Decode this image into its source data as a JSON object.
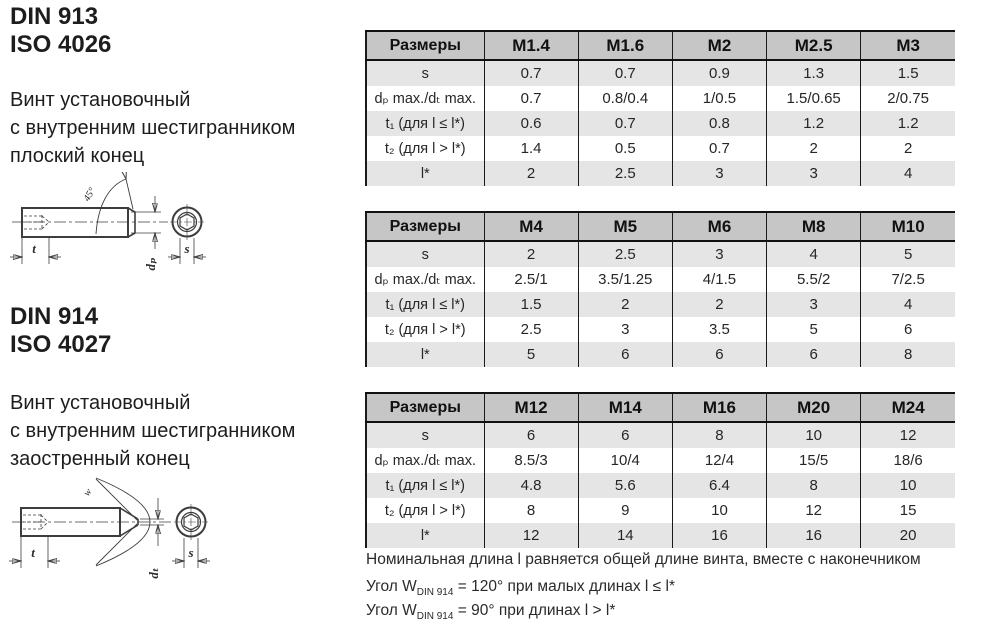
{
  "colors": {
    "background": "#ffffff",
    "text": "#262626",
    "table_header_bg": "#c6c6c6",
    "row_stripe_bg": "#e5e5e5",
    "table_border": "#1a1a1a",
    "drawing_stroke": "#3d3d3d"
  },
  "sections": [
    {
      "standard": [
        "DIN 913",
        "ISO 4026"
      ],
      "description": [
        "Винт установочный",
        "с внутренним шестигранником",
        "плоский конец"
      ]
    },
    {
      "standard": [
        "DIN 914",
        "ISO 4027"
      ],
      "description": [
        "Винт установочный",
        "с внутренним шестигранником",
        "заостренный конец"
      ]
    }
  ],
  "drawings": [
    {
      "name": "din913-flat-point",
      "labels": {
        "angle": "45°",
        "depth": "t",
        "point_diameter": "dₚ",
        "socket_size": "s"
      }
    },
    {
      "name": "din914-cone-point",
      "labels": {
        "angle": "w",
        "depth": "t",
        "point_diameter": "dₜ",
        "socket_size": "s"
      }
    }
  ],
  "tables": [
    {
      "header": [
        "Размеры",
        "M1.4",
        "M1.6",
        "M2",
        "M2.5",
        "M3"
      ],
      "rows": [
        {
          "label": "s",
          "values": [
            "0.7",
            "0.7",
            "0.9",
            "1.3",
            "1.5"
          ]
        },
        {
          "label": "dₚ max./dₜ max.",
          "values": [
            "0.7",
            "0.8/0.4",
            "1/0.5",
            "1.5/0.65",
            "2/0.75"
          ]
        },
        {
          "label": "t₁ (для l ≤ l*)",
          "values": [
            "0.6",
            "0.7",
            "0.8",
            "1.2",
            "1.2"
          ]
        },
        {
          "label": "t₂ (для l > l*)",
          "values": [
            "1.4",
            "0.5",
            "0.7",
            "2",
            "2"
          ]
        },
        {
          "label": "l*",
          "values": [
            "2",
            "2.5",
            "3",
            "3",
            "4"
          ]
        }
      ]
    },
    {
      "header": [
        "Размеры",
        "M4",
        "M5",
        "M6",
        "M8",
        "M10"
      ],
      "rows": [
        {
          "label": "s",
          "values": [
            "2",
            "2.5",
            "3",
            "4",
            "5"
          ]
        },
        {
          "label": "dₚ max./dₜ max.",
          "values": [
            "2.5/1",
            "3.5/1.25",
            "4/1.5",
            "5.5/2",
            "7/2.5"
          ]
        },
        {
          "label": "t₁ (для l ≤ l*)",
          "values": [
            "1.5",
            "2",
            "2",
            "3",
            "4"
          ]
        },
        {
          "label": "t₂ (для l > l*)",
          "values": [
            "2.5",
            "3",
            "3.5",
            "5",
            "6"
          ]
        },
        {
          "label": "l*",
          "values": [
            "5",
            "6",
            "6",
            "6",
            "8"
          ]
        }
      ]
    },
    {
      "header": [
        "Размеры",
        "M12",
        "M14",
        "M16",
        "M20",
        "M24"
      ],
      "rows": [
        {
          "label": "s",
          "values": [
            "6",
            "6",
            "8",
            "10",
            "12"
          ]
        },
        {
          "label": "dₚ max./dₜ max.",
          "values": [
            "8.5/3",
            "10/4",
            "12/4",
            "15/5",
            "18/6"
          ]
        },
        {
          "label": "t₁ (для l ≤ l*)",
          "values": [
            "4.8",
            "5.6",
            "6.4",
            "8",
            "10"
          ]
        },
        {
          "label": "t₂ (для l > l*)",
          "values": [
            "8",
            "9",
            "10",
            "12",
            "15"
          ]
        },
        {
          "label": "l*",
          "values": [
            "12",
            "14",
            "16",
            "16",
            "20"
          ]
        }
      ]
    }
  ],
  "notes": {
    "length_note": "Номинальная длина l равняется общей длине винта, вместе с наконечником",
    "angle_notes": [
      {
        "prefix": "Угол W",
        "sub": "DIN 914",
        "rest": " = 120° при малых длинах l ≤ l*"
      },
      {
        "prefix": "Угол W",
        "sub": "DIN 914",
        "rest": " = 90° при длинах l > l*"
      }
    ]
  }
}
